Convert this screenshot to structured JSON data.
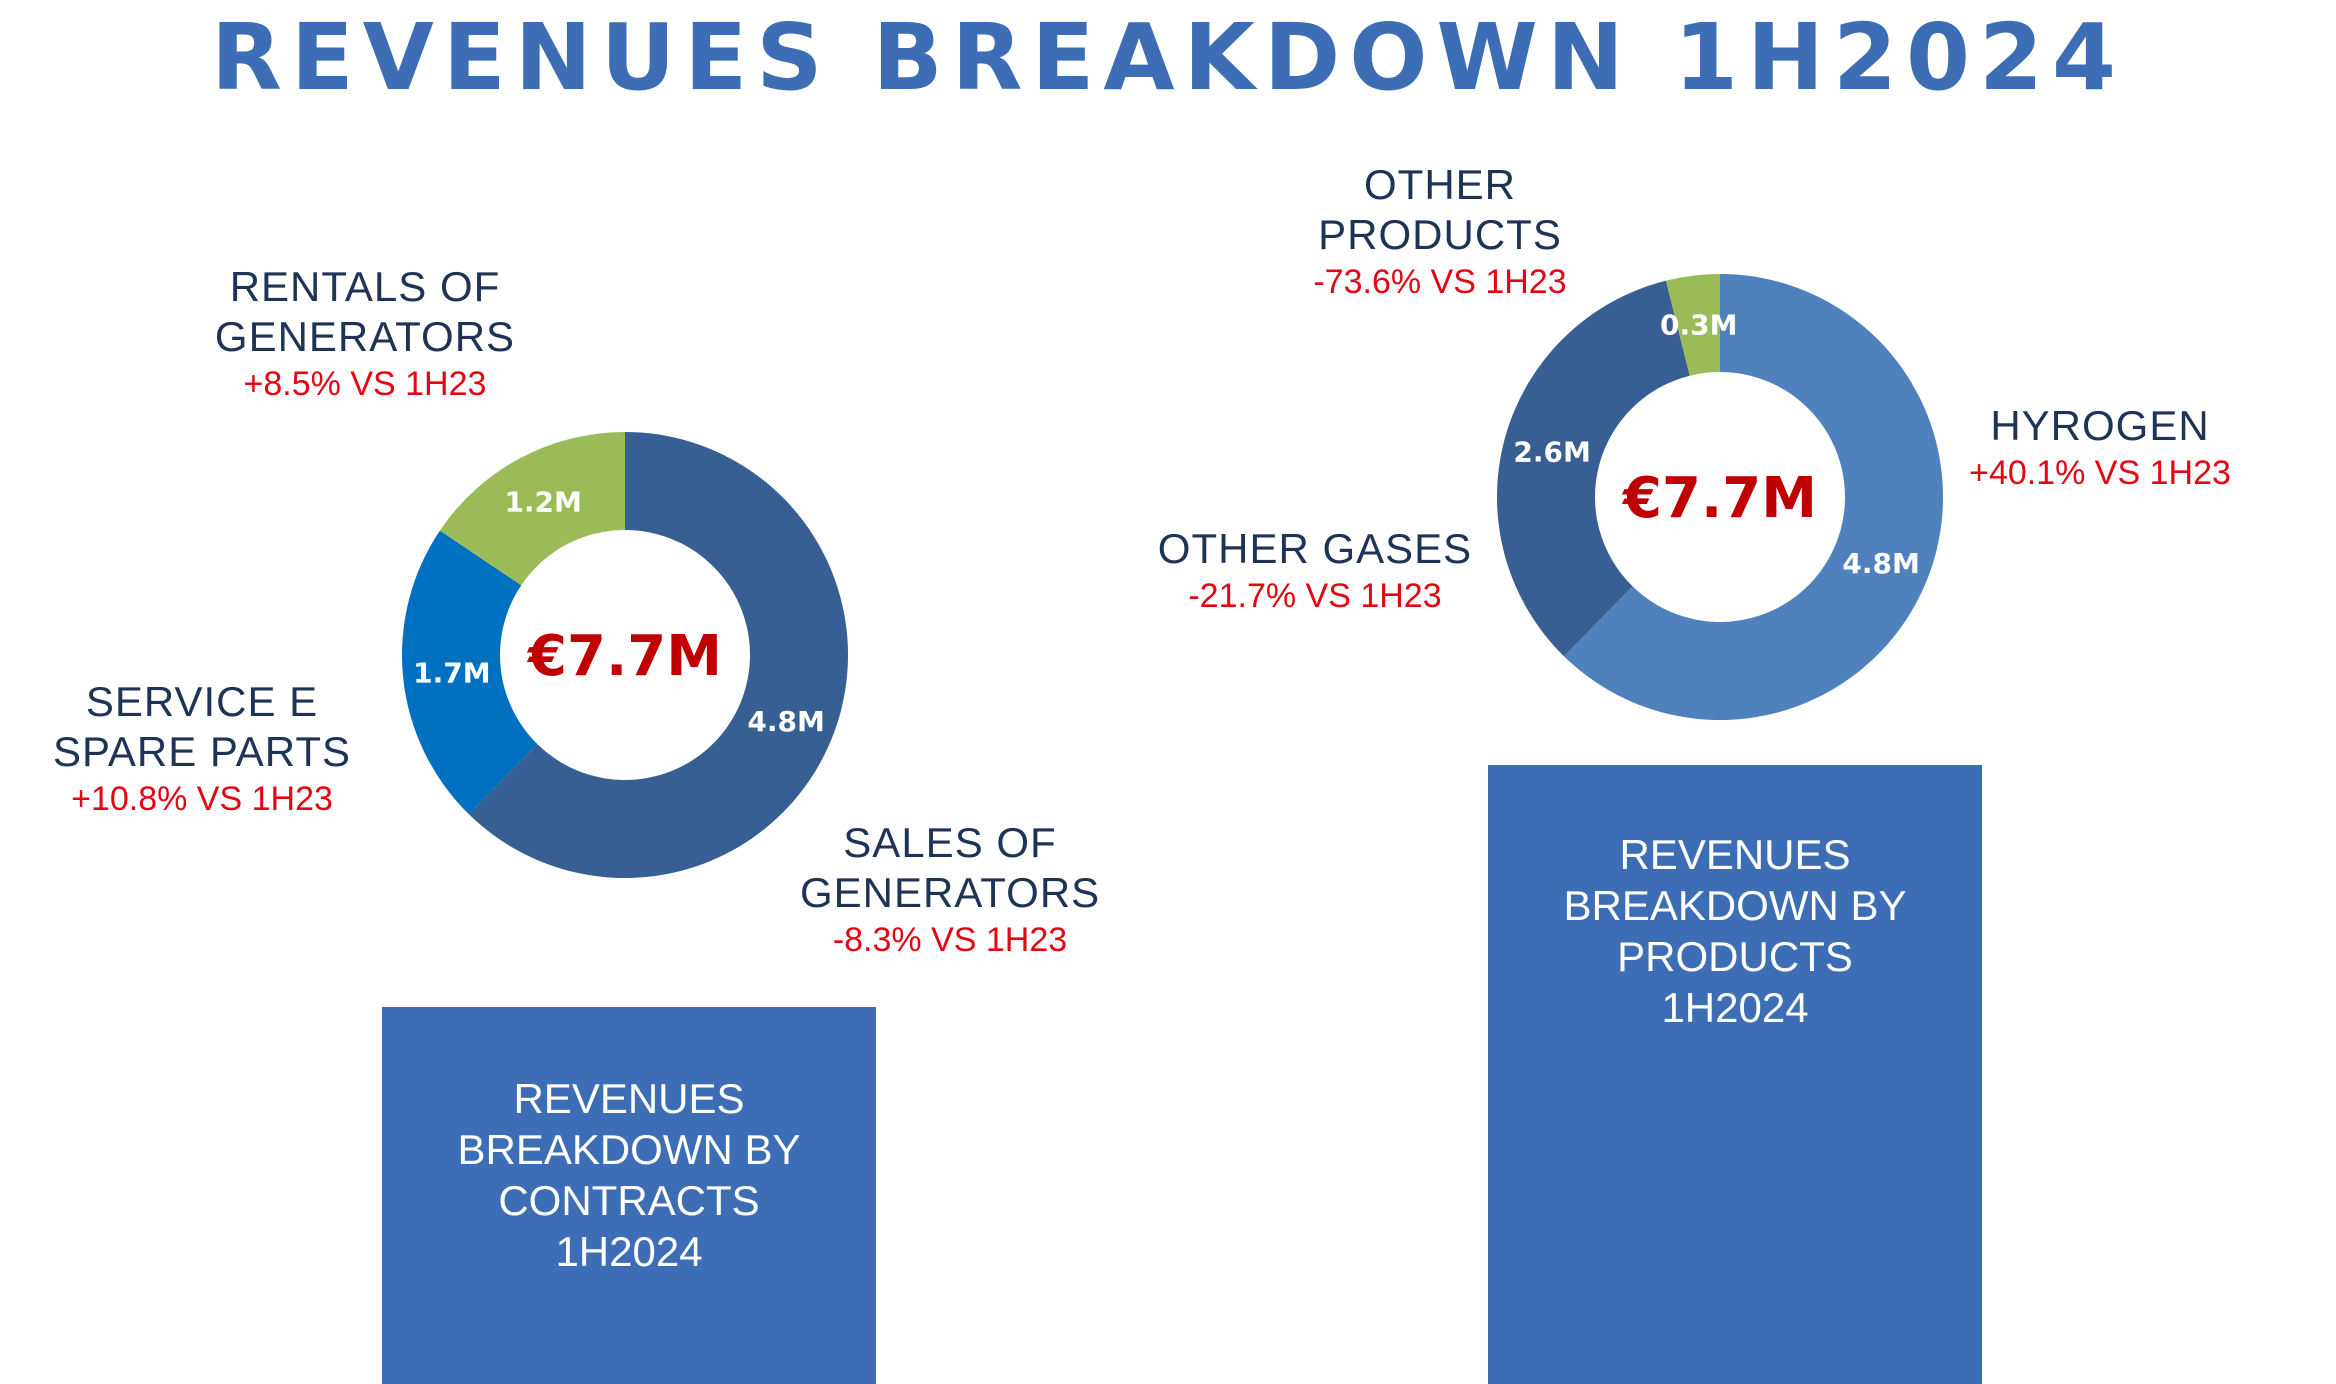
{
  "title": "REVENUES BREAKDOWN 1H2024",
  "colors": {
    "title": "#3C6DB5",
    "positive_delta": "#E30613",
    "total": "#C00000",
    "box": "#3C6DB5"
  },
  "chart_data": [
    {
      "type": "pie",
      "subtype": "donut",
      "title": "REVENUES BREAKDOWN BY CONTRACTS 1H2024",
      "center_label": "€7.7M",
      "slices": [
        {
          "name_lines": [
            "SALES OF",
            "GENERATORS"
          ],
          "value": 4.8,
          "label": "4.8M",
          "delta": "-8.3% VS 1H23",
          "color": "#375F93"
        },
        {
          "name_lines": [
            "SERVICE E",
            "SPARE PARTS"
          ],
          "value": 1.7,
          "label": "1.7M",
          "delta": "+10.8% VS 1H23",
          "color": "#0070C0"
        },
        {
          "name_lines": [
            "RENTALS OF",
            "GENERATORS"
          ],
          "value": 1.2,
          "label": "1.2M",
          "delta": "+8.5% VS 1H23",
          "color": "#9BBB59"
        }
      ]
    },
    {
      "type": "pie",
      "subtype": "donut",
      "title": "REVENUES BREAKDOWN BY PRODUCTS 1H2024",
      "center_label": "€7.7M",
      "slices": [
        {
          "name_lines": [
            "HYROGEN"
          ],
          "value": 4.8,
          "label": "4.8M",
          "delta": "+40.1% VS 1H23",
          "color": "#4F81BD"
        },
        {
          "name_lines": [
            "OTHER GASES"
          ],
          "value": 2.6,
          "label": "2.6M",
          "delta": "-21.7% VS 1H23",
          "color": "#375F93"
        },
        {
          "name_lines": [
            "OTHER",
            "PRODUCTS"
          ],
          "value": 0.3,
          "label": "0.3M",
          "delta": "-73.6% VS 1H23",
          "color": "#9BBB59"
        }
      ]
    }
  ],
  "boxes": [
    {
      "lines": [
        "REVENUES",
        "BREAKDOWN BY",
        "CONTRACTS",
        "1H2024"
      ]
    },
    {
      "lines": [
        "REVENUES",
        "BREAKDOWN BY",
        "PRODUCTS",
        "1H2024"
      ]
    }
  ]
}
